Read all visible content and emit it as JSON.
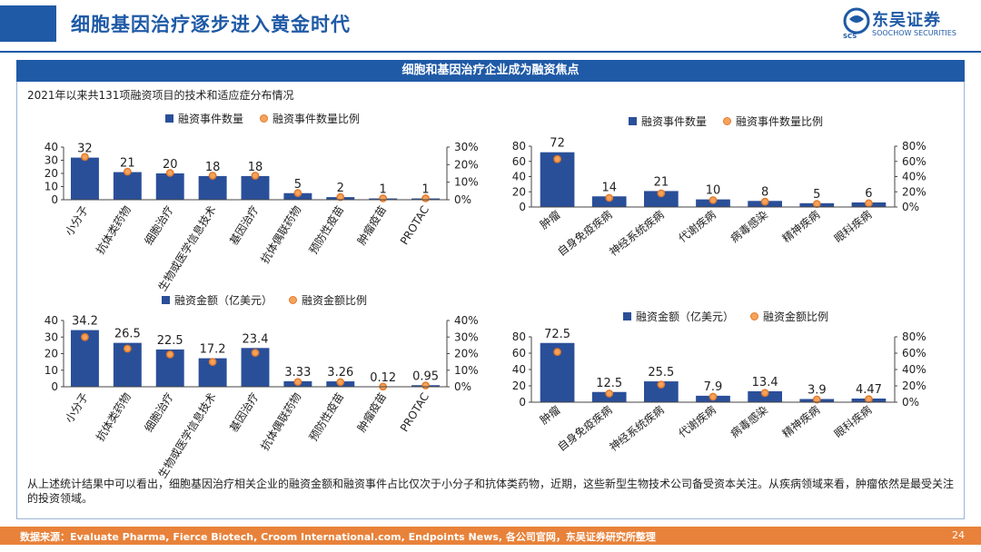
{
  "header": {
    "title": "细胞基因治疗逐步进入黄金时代"
  },
  "logo": {
    "name": "东吴证券",
    "english": "SOOCHOW SECURITIES",
    "mark": "SCS"
  },
  "band": {
    "title": "细胞和基因治疗企业成为融资焦点"
  },
  "subtitle": "2021年以来共131项融资项目的技术和适应症分布情况",
  "colors": {
    "bar": "#2a4f99",
    "dot_fill": "#f5a35c",
    "dot_stroke": "#e37b2c",
    "brand": "#1f5aa6",
    "footer": "#e8823a"
  },
  "chart_data": [
    {
      "type": "bar",
      "legend": [
        "融资事件数量",
        "融资事件数量比例"
      ],
      "categories": [
        "小分子",
        "抗体类药物",
        "细胞治疗",
        "生物或医学信息技术",
        "基因治疗",
        "抗体偶联药物",
        "预防性疫苗",
        "肿瘤疫苗",
        "PROTAC"
      ],
      "values": [
        32,
        21,
        20,
        18,
        18,
        5,
        2,
        1,
        1
      ],
      "value_labels": [
        "32",
        "21",
        "20",
        "18",
        "18",
        "5",
        "2",
        "1",
        "1"
      ],
      "ratio": [
        24.4,
        16.0,
        15.3,
        13.7,
        13.7,
        3.8,
        1.5,
        0.8,
        0.8
      ],
      "ylim": [
        0,
        40
      ],
      "yticks": [
        "0",
        "10",
        "20",
        "30",
        "40"
      ],
      "y2lim": [
        0,
        30
      ],
      "y2ticks": [
        "0%",
        "10%",
        "20%",
        "30%"
      ]
    },
    {
      "type": "bar",
      "legend": [
        "融资事件数量",
        "融资事件数量比例"
      ],
      "categories": [
        "肿瘤",
        "自身免疫疾病",
        "神经系统疾病",
        "代谢疾病",
        "病毒感染",
        "精神疾病",
        "眼科疾病"
      ],
      "values": [
        72,
        14,
        21,
        10,
        8,
        5,
        6
      ],
      "value_labels": [
        "72",
        "14",
        "21",
        "10",
        "8",
        "5",
        "6"
      ],
      "ratio": [
        63,
        12,
        18,
        9,
        7,
        4,
        5
      ],
      "ylim": [
        0,
        80
      ],
      "yticks": [
        "0",
        "20",
        "40",
        "60",
        "80"
      ],
      "y2lim": [
        0,
        80
      ],
      "y2ticks": [
        "0%",
        "20%",
        "40%",
        "60%",
        "80%"
      ]
    },
    {
      "type": "bar",
      "legend": [
        "融资金额（亿美元）",
        "融资金额比例"
      ],
      "categories": [
        "小分子",
        "抗体类药物",
        "细胞治疗",
        "生物或医学信息技术",
        "基因治疗",
        "抗体偶联药物",
        "预防性疫苗",
        "肿瘤疫苗",
        "PROTAC"
      ],
      "values": [
        34.2,
        26.5,
        22.5,
        17.2,
        23.4,
        3.33,
        3.26,
        0.12,
        0.95
      ],
      "value_labels": [
        "34.2",
        "26.5",
        "22.5",
        "17.2",
        "23.4",
        "3.33",
        "3.26",
        "0.12",
        "0.95"
      ],
      "ratio": [
        30,
        23,
        19.5,
        15,
        20.5,
        2.9,
        2.8,
        0.1,
        0.8
      ],
      "ylim": [
        0,
        40
      ],
      "yticks": [
        "0",
        "10",
        "20",
        "30",
        "40"
      ],
      "y2lim": [
        0,
        40
      ],
      "y2ticks": [
        "0%",
        "10%",
        "20%",
        "30%",
        "40%"
      ]
    },
    {
      "type": "bar",
      "legend": [
        "融资金额（亿美元）",
        "融资金额比例"
      ],
      "categories": [
        "肿瘤",
        "自身免疫疾病",
        "神经系统疾病",
        "代谢疾病",
        "病毒感染",
        "精神疾病",
        "眼科疾病"
      ],
      "values": [
        72.5,
        12.5,
        25.5,
        7.9,
        13.4,
        3.9,
        4.47
      ],
      "value_labels": [
        "72.5",
        "12.5",
        "25.5",
        "7.9",
        "13.4",
        "3.9",
        "4.47"
      ],
      "ratio": [
        61.5,
        10.6,
        21.6,
        6.7,
        11.4,
        3.3,
        3.8
      ],
      "ylim": [
        0,
        80
      ],
      "yticks": [
        "0",
        "20",
        "40",
        "60",
        "80"
      ],
      "y2lim": [
        0,
        80
      ],
      "y2ticks": [
        "0%",
        "20%",
        "40%",
        "60%",
        "80%"
      ]
    }
  ],
  "conclusion": "从上述统计结果中可以看出，细胞基因治疗相关企业的融资金额和融资事件占比仅次于小分子和抗体类药物，近期，这些新型生物技术公司备受资本关注。从疾病领域来看，肿瘤依然是最受关注的投资领域。",
  "footer": {
    "source": "数据来源：Evaluate Pharma, Fierce Biotech, Croom International.com, Endpoints News, 各公司官网，东吴证券研究所整理",
    "page": "24"
  }
}
